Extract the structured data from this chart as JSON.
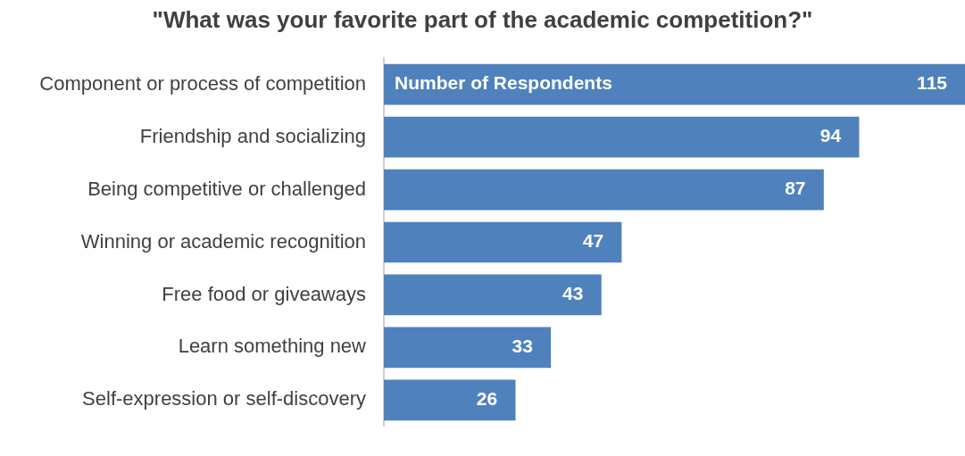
{
  "chart_data": {
    "type": "bar",
    "orientation": "horizontal",
    "title": "\"What was your favorite part of the academic competition?\"",
    "categories": [
      "Component or process of competition",
      "Friendship and socializing",
      "Being competitive or challenged",
      "Winning or academic recognition",
      "Free food or giveaways",
      "Learn something new",
      "Self-expression or self-discovery"
    ],
    "series": [
      {
        "name": "Number of Respondents",
        "color": "#4f81bd",
        "values": [
          115,
          94,
          87,
          47,
          43,
          33,
          26
        ]
      }
    ],
    "data_labels": true,
    "legend": false
  }
}
